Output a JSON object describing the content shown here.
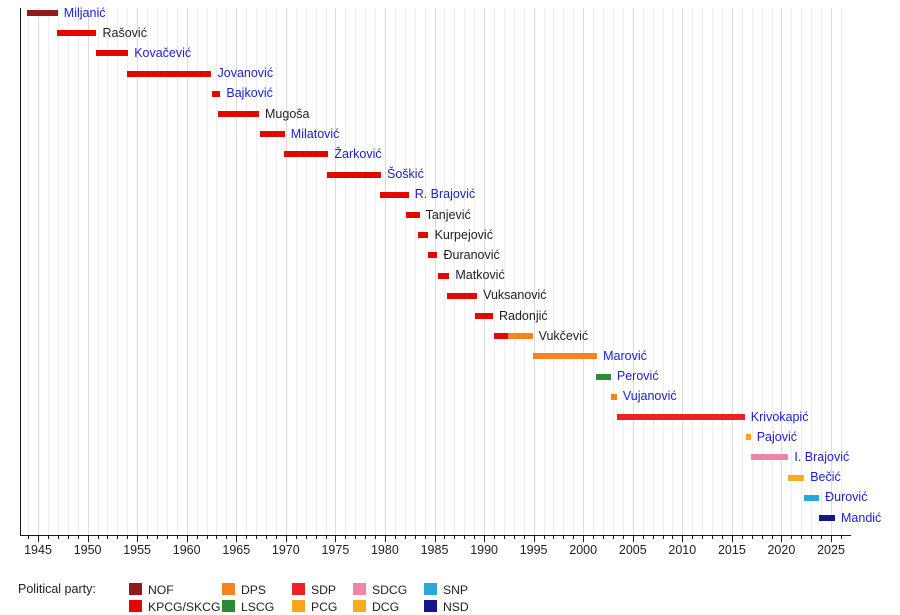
{
  "colors": {
    "link_text": "#2020cc",
    "plain_text": "#1f1f1f",
    "axis": "#1a1a1a",
    "grid_minor": "#ededed",
    "grid_major": "#dcdcdc"
  },
  "legend": {
    "title": "Political party:"
  },
  "chart_data": {
    "type": "timeline",
    "title": "",
    "xlabel": "",
    "ylabel": "",
    "x_range": [
      1943.2,
      2026.9
    ],
    "x_major_ticks": [
      1945,
      1950,
      1955,
      1960,
      1965,
      1970,
      1975,
      1980,
      1985,
      1990,
      1995,
      2000,
      2005,
      2010,
      2015,
      2020,
      2025
    ],
    "x_minor_tick_step": 1,
    "grid": "vertical, every year (darker every 5 years)",
    "legend_position": "bottom",
    "parties": [
      {
        "id": "NOF",
        "label": "NOF",
        "color": "#8e1b1e"
      },
      {
        "id": "KPCG_SKCG",
        "label": "KPCG/SKCG",
        "color": "#e20800"
      },
      {
        "id": "DPS",
        "label": "DPS",
        "color": "#f5841f"
      },
      {
        "id": "LSCG",
        "label": "LSCG",
        "color": "#2e8b33"
      },
      {
        "id": "SDP",
        "label": "SDP",
        "color": "#ec2227"
      },
      {
        "id": "PCG",
        "label": "PCG",
        "color": "#f9a51d"
      },
      {
        "id": "SDCG",
        "label": "SDCG",
        "color": "#ec88a6"
      },
      {
        "id": "DCG",
        "label": "DCG",
        "color": "#faad1b"
      },
      {
        "id": "SNP",
        "label": "SNP",
        "color": "#2aa7db"
      },
      {
        "id": "NSD",
        "label": "NSD",
        "color": "#15158c"
      }
    ],
    "people": [
      {
        "name": "Miljanić",
        "link": true,
        "segments": [
          {
            "party": "NOF",
            "start": 1943.9,
            "end": 1947.0
          }
        ]
      },
      {
        "name": "Rašović",
        "link": false,
        "segments": [
          {
            "party": "KPCG_SKCG",
            "start": 1946.9,
            "end": 1950.9
          }
        ]
      },
      {
        "name": "Kovačević",
        "link": true,
        "segments": [
          {
            "party": "KPCG_SKCG",
            "start": 1950.8,
            "end": 1954.1
          }
        ]
      },
      {
        "name": "Jovanović",
        "link": true,
        "segments": [
          {
            "party": "KPCG_SKCG",
            "start": 1954.0,
            "end": 1962.5
          }
        ]
      },
      {
        "name": "Bajković",
        "link": true,
        "segments": [
          {
            "party": "KPCG_SKCG",
            "start": 1962.5,
            "end": 1963.4
          }
        ]
      },
      {
        "name": "Mugoša",
        "link": false,
        "segments": [
          {
            "party": "KPCG_SKCG",
            "start": 1963.2,
            "end": 1967.3
          }
        ]
      },
      {
        "name": "Milatović",
        "link": true,
        "segments": [
          {
            "party": "KPCG_SKCG",
            "start": 1967.4,
            "end": 1969.9
          }
        ]
      },
      {
        "name": "Žarković",
        "link": true,
        "segments": [
          {
            "party": "KPCG_SKCG",
            "start": 1969.8,
            "end": 1974.3
          }
        ]
      },
      {
        "name": "Šoškić",
        "link": true,
        "segments": [
          {
            "party": "KPCG_SKCG",
            "start": 1974.1,
            "end": 1979.6
          }
        ]
      },
      {
        "name": "R. Brajović",
        "link": true,
        "segments": [
          {
            "party": "KPCG_SKCG",
            "start": 1979.5,
            "end": 1982.4
          }
        ]
      },
      {
        "name": "Tanjević",
        "link": false,
        "segments": [
          {
            "party": "KPCG_SKCG",
            "start": 1982.1,
            "end": 1983.5
          }
        ]
      },
      {
        "name": "Kurpejović",
        "link": false,
        "segments": [
          {
            "party": "KPCG_SKCG",
            "start": 1983.3,
            "end": 1984.4
          }
        ]
      },
      {
        "name": "Đuranović",
        "link": false,
        "segments": [
          {
            "party": "KPCG_SKCG",
            "start": 1984.3,
            "end": 1985.3
          }
        ]
      },
      {
        "name": "Matković",
        "link": false,
        "segments": [
          {
            "party": "KPCG_SKCG",
            "start": 1985.3,
            "end": 1986.5
          }
        ]
      },
      {
        "name": "Vuksanović",
        "link": false,
        "segments": [
          {
            "party": "KPCG_SKCG",
            "start": 1986.3,
            "end": 1989.3
          }
        ]
      },
      {
        "name": "Radonjić",
        "link": false,
        "segments": [
          {
            "party": "KPCG_SKCG",
            "start": 1989.1,
            "end": 1990.9
          }
        ]
      },
      {
        "name": "Vukčević",
        "link": false,
        "segments": [
          {
            "party": "KPCG_SKCG",
            "start": 1991.0,
            "end": 1992.4
          },
          {
            "party": "DPS",
            "start": 1992.4,
            "end": 1994.9
          }
        ]
      },
      {
        "name": "Marović",
        "link": true,
        "segments": [
          {
            "party": "DPS",
            "start": 1994.9,
            "end": 2001.4
          }
        ]
      },
      {
        "name": "Perović",
        "link": true,
        "segments": [
          {
            "party": "LSCG",
            "start": 2001.3,
            "end": 2002.8
          }
        ]
      },
      {
        "name": "Vujanović",
        "link": true,
        "segments": [
          {
            "party": "DPS",
            "start": 2002.8,
            "end": 2003.4
          }
        ]
      },
      {
        "name": "Krivokapić",
        "link": true,
        "segments": [
          {
            "party": "SDP",
            "start": 2003.4,
            "end": 2016.3
          }
        ]
      },
      {
        "name": "Pajović",
        "link": true,
        "segments": [
          {
            "party": "PCG",
            "start": 2016.4,
            "end": 2016.9
          }
        ]
      },
      {
        "name": "I. Brajović",
        "link": true,
        "segments": [
          {
            "party": "SDCG",
            "start": 2016.9,
            "end": 2020.7
          }
        ]
      },
      {
        "name": "Bečić",
        "link": true,
        "segments": [
          {
            "party": "DCG",
            "start": 2020.7,
            "end": 2022.3
          }
        ]
      },
      {
        "name": "Đurović",
        "link": true,
        "segments": [
          {
            "party": "SNP",
            "start": 2022.3,
            "end": 2023.8
          }
        ]
      },
      {
        "name": "Mandić",
        "link": true,
        "segments": [
          {
            "party": "NSD",
            "start": 2023.8,
            "end": 2025.4
          }
        ]
      }
    ]
  }
}
